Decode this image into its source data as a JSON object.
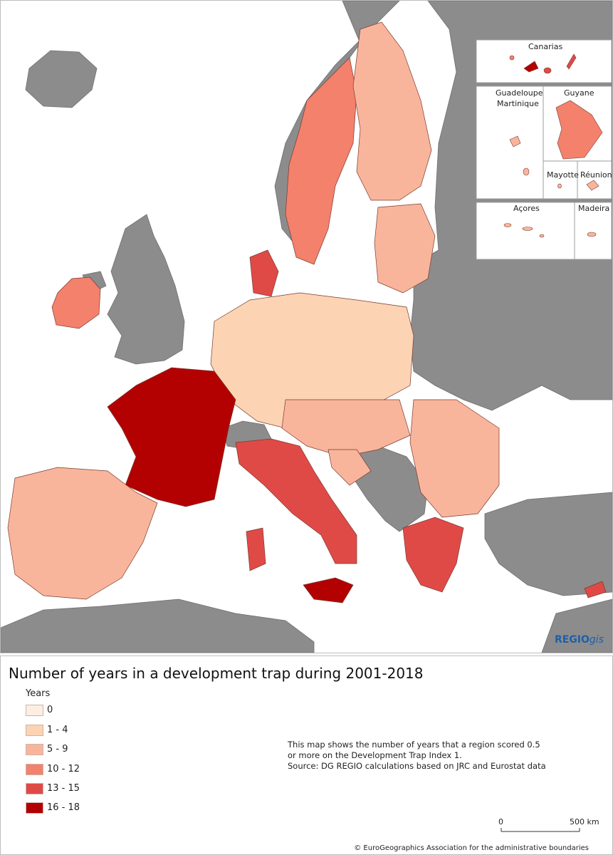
{
  "map": {
    "sea_color": "#ffffff",
    "non_eu_color": "#8c8c8c",
    "insets": [
      {
        "label": "Canarias"
      },
      {
        "label": "Guadeloupe"
      },
      {
        "label": "Martinique"
      },
      {
        "label": "Guyane"
      },
      {
        "label": "Mayotte"
      },
      {
        "label": "Réunion"
      },
      {
        "label": "Açores"
      },
      {
        "label": "Madeira"
      }
    ],
    "brand": {
      "main": "REGIO",
      "suffix": "gis",
      "color": "#1f5fa8"
    }
  },
  "legend": {
    "map_title": "Number of years in a development trap during 2001-2018",
    "title": "Years",
    "classes": [
      {
        "label": "0",
        "color": "#fdeee2"
      },
      {
        "label": "1 - 4",
        "color": "#fcd3b3"
      },
      {
        "label": "5 - 9",
        "color": "#f9b59b"
      },
      {
        "label": "10 - 12",
        "color": "#f3816c"
      },
      {
        "label": "13 - 15",
        "color": "#df4a47"
      },
      {
        "label": "16 - 18",
        "color": "#b30000"
      }
    ],
    "note": "This map shows the number of years that a region scored 0.5 or more on the Development Trap Index 1.",
    "source": "Source: DG REGIO calculations based on JRC and Eurostat data",
    "scale": {
      "zero": "0",
      "max": "500 km"
    },
    "copyright": "© EuroGeographics Association for the administrative boundaries"
  }
}
